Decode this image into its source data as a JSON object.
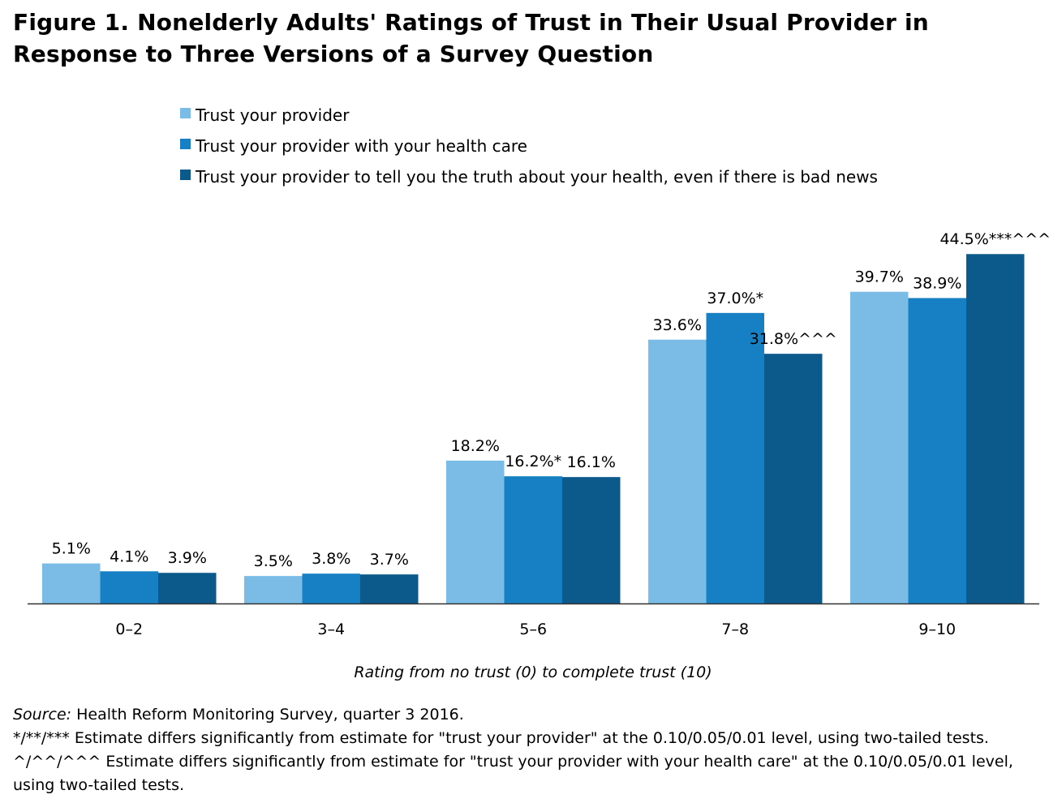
{
  "chart_data": {
    "type": "bar",
    "title": "Figure 1. Nonelderly Adults' Ratings of Trust in Their Usual Provider in Response to Three Versions of a Survey Question",
    "xlabel": "Rating from no trust (0) to complete trust (10)",
    "ylabel": "",
    "ylim": [
      0,
      45
    ],
    "grid": false,
    "legend_position": "top",
    "categories": [
      "0–2",
      "3–4",
      "5–6",
      "7–8",
      "9–10"
    ],
    "series": [
      {
        "name": "Trust your provider",
        "color": "#7abce6",
        "values": [
          5.1,
          3.5,
          18.2,
          33.6,
          39.7
        ],
        "labels": [
          "5.1%",
          "3.5%",
          "18.2%",
          "33.6%",
          "39.7%"
        ]
      },
      {
        "name": "Trust your provider with your health care",
        "color": "#1780c4",
        "values": [
          4.1,
          3.8,
          16.2,
          37.0,
          38.9
        ],
        "labels": [
          "4.1%",
          "3.8%",
          "16.2%*",
          "37.0%*",
          "38.9%"
        ]
      },
      {
        "name": "Trust your provider to tell you the truth about your health, even if there is bad news",
        "color": "#0c5a8c",
        "values": [
          3.9,
          3.7,
          16.1,
          31.8,
          44.5
        ],
        "labels": [
          "3.9%",
          "3.7%",
          "16.1%",
          "31.8%^^^",
          "44.5%***^^^"
        ]
      }
    ]
  },
  "footnotes": {
    "source_label": "Source:",
    "source_text": " Health Reform Monitoring Survey, quarter 3 2016.",
    "note1": "*/**/*** Estimate differs significantly from estimate for \"trust your provider\" at the 0.10/0.05/0.01 level, using two-tailed tests.",
    "note2": "^/^^/^^^ Estimate differs significantly from estimate for \"trust your provider with your health care\" at the 0.10/0.05/0.01 level,",
    "note3": "using two-tailed tests."
  }
}
